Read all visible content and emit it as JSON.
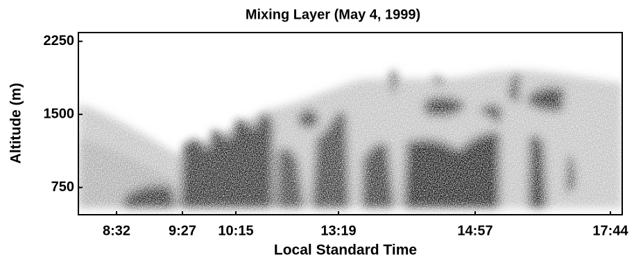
{
  "chart_data": {
    "type": "image",
    "title": "Mixing Layer (May 4, 1999)",
    "x_label": "Local Standard Time",
    "y_label": "Altitude (m)",
    "x_tick_labels": [
      "8:32",
      "9:27",
      "10:15",
      "13:19",
      "14:57",
      "17:44"
    ],
    "ylim": [
      470,
      2340
    ],
    "yticks": [
      750,
      1500,
      2250
    ]
  }
}
